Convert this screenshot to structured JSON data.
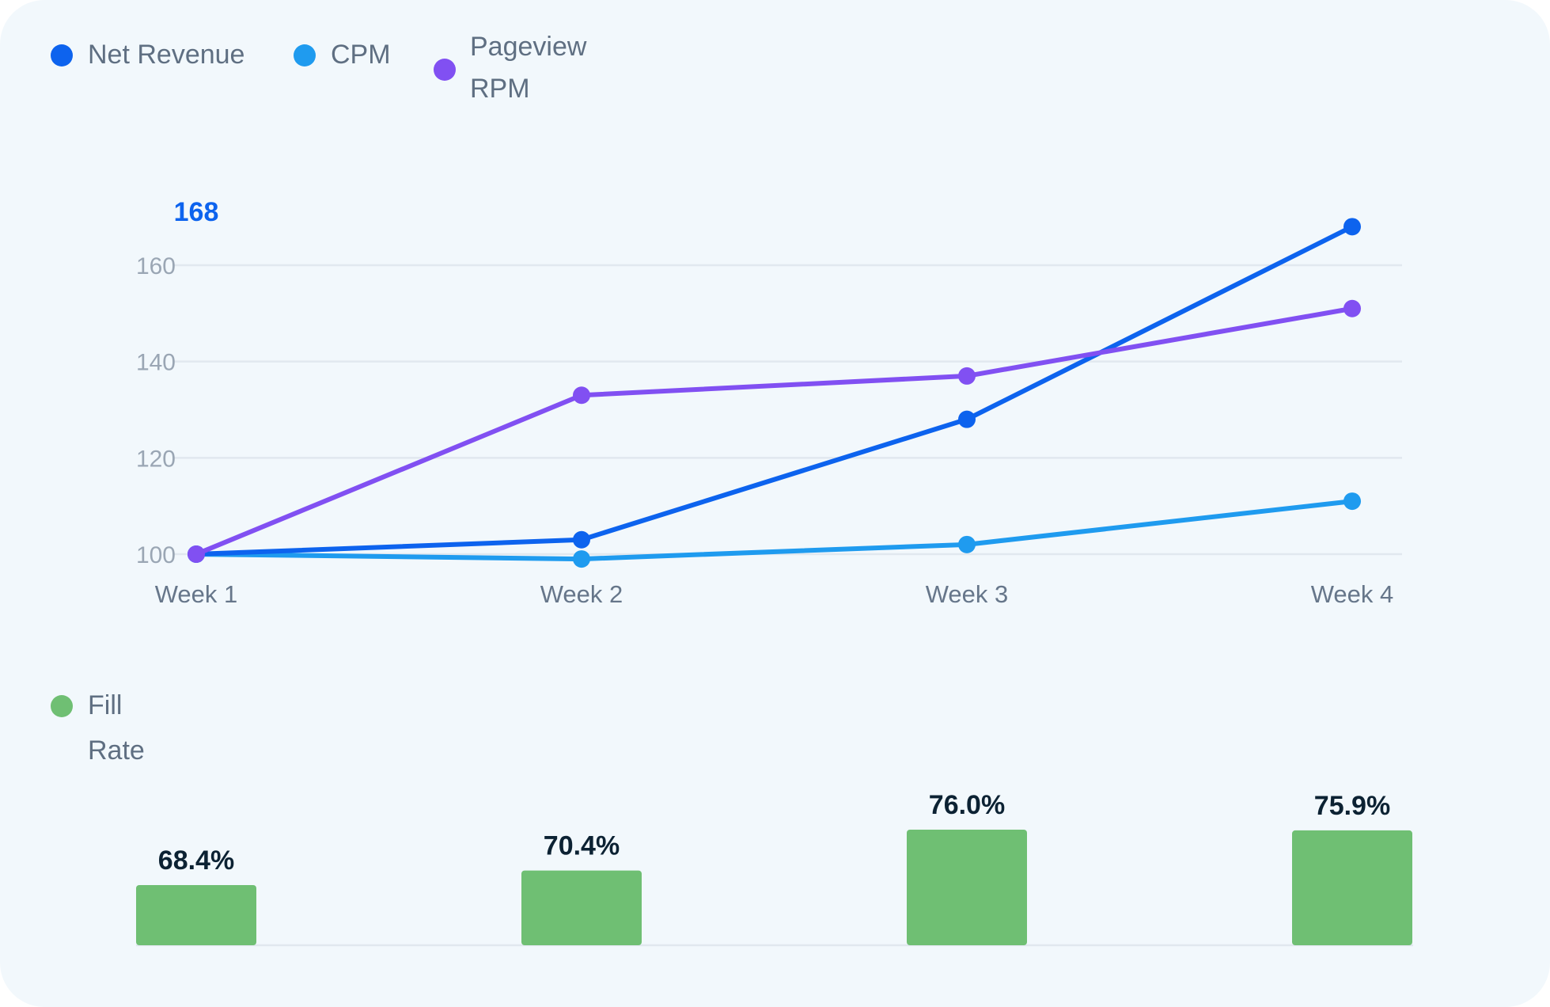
{
  "colors": {
    "net_revenue": "#0d63ee",
    "cpm": "#1f9bef",
    "pageview_rpm": "#8150f2",
    "fill_rate": "#6fbf73",
    "grid": "#e1e8ef"
  },
  "legend_top": [
    {
      "label_lines": [
        "Net Revenue"
      ]
    },
    {
      "label_lines": [
        "CPM"
      ]
    },
    {
      "label_lines": [
        "Pageview",
        "RPM"
      ]
    }
  ],
  "legend_bottom": [
    {
      "label_lines": [
        "Fill",
        "Rate"
      ]
    }
  ],
  "chart_data": [
    {
      "type": "line",
      "categories": [
        "Week 1",
        "Week 2",
        "Week 3",
        "Week 4"
      ],
      "ylim": [
        100,
        168
      ],
      "yticks": [
        100,
        120,
        140,
        160
      ],
      "grid": true,
      "legend": "top-left",
      "peak_label": "168",
      "series": [
        {
          "name": "Net Revenue",
          "values": [
            100,
            103,
            128,
            168
          ]
        },
        {
          "name": "CPM",
          "values": [
            100,
            99,
            102,
            111
          ]
        },
        {
          "name": "Pageview RPM",
          "values": [
            100,
            133,
            137,
            151
          ]
        }
      ]
    },
    {
      "type": "bar",
      "categories": [
        "Week 1",
        "Week 2",
        "Week 3",
        "Week 4"
      ],
      "legend": "top-left",
      "series": [
        {
          "name": "Fill Rate",
          "values": [
            68.4,
            70.4,
            76.0,
            75.9
          ]
        }
      ],
      "data_labels": [
        "68.4%",
        "70.4%",
        "76.0%",
        "75.9%"
      ]
    }
  ]
}
